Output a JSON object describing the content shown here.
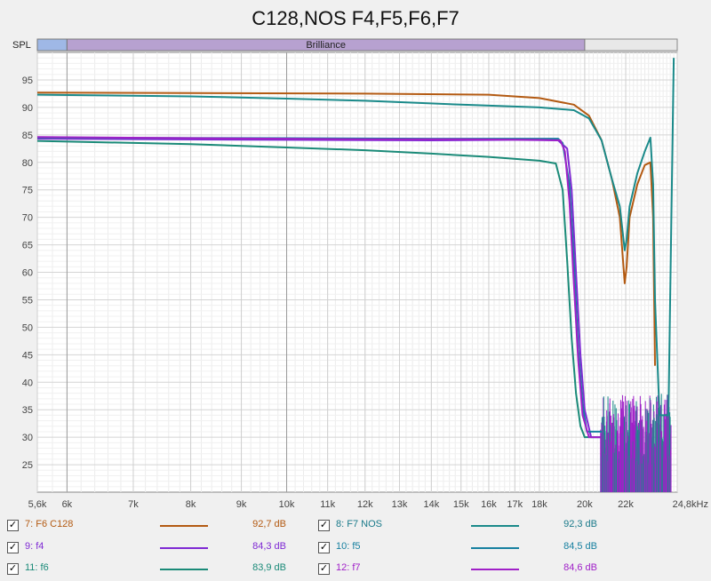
{
  "title": "C128,NOS F4,F5,F6,F7",
  "band": {
    "label": "SPL",
    "region": "Brilliance"
  },
  "chart_data": {
    "type": "line",
    "title": "C128,NOS F4,F5,F6,F7",
    "xscale": "log",
    "xlim": [
      5.6,
      24.8
    ],
    "ylim": [
      20,
      100
    ],
    "x_ticks": [
      {
        "v": 5.6,
        "label": "5,6k"
      },
      {
        "v": 6,
        "label": "6k"
      },
      {
        "v": 7,
        "label": "7k"
      },
      {
        "v": 8,
        "label": "8k"
      },
      {
        "v": 9,
        "label": "9k"
      },
      {
        "v": 10,
        "label": "10k"
      },
      {
        "v": 11,
        "label": "11k"
      },
      {
        "v": 12,
        "label": "12k"
      },
      {
        "v": 13,
        "label": "13k"
      },
      {
        "v": 14,
        "label": "14k"
      },
      {
        "v": 15,
        "label": "15k"
      },
      {
        "v": 16,
        "label": "16k"
      },
      {
        "v": 17,
        "label": "17k"
      },
      {
        "v": 18,
        "label": "18k"
      },
      {
        "v": 20,
        "label": "20k"
      },
      {
        "v": 22,
        "label": "22k"
      },
      {
        "v": 24.8,
        "label": "24,8kHz"
      }
    ],
    "y_ticks": [
      25,
      30,
      35,
      40,
      45,
      50,
      55,
      60,
      65,
      70,
      75,
      80,
      85,
      90,
      95
    ],
    "series": [
      {
        "name": "7: F6 C128",
        "color": "#b35a12",
        "x": [
          5.6,
          8,
          12,
          16,
          18,
          19.5,
          20.2,
          20.8,
          21.3,
          21.7,
          21.95,
          22.05,
          22.2,
          22.6,
          23.0,
          23.3,
          23.45,
          23.55
        ],
        "y": [
          92.7,
          92.6,
          92.5,
          92.3,
          91.7,
          90.5,
          88.5,
          84.0,
          77.0,
          70.0,
          58.0,
          61.0,
          70.0,
          76.0,
          79.5,
          80.0,
          70.0,
          43.0
        ]
      },
      {
        "name": "8: F7 NOS",
        "color": "#1a8a8a",
        "x": [
          5.6,
          8,
          10,
          12,
          15,
          18,
          19.5,
          20.2,
          20.8,
          21.3,
          21.7,
          21.95,
          22.05,
          22.2,
          22.6,
          23.0,
          23.3,
          23.45,
          23.55,
          23.8,
          24.3,
          24.6
        ],
        "y": [
          92.3,
          92.0,
          91.6,
          91.2,
          90.5,
          90.0,
          89.5,
          88.0,
          84.0,
          77.0,
          72.0,
          64.0,
          66.0,
          72.0,
          78.0,
          82.0,
          84.5,
          76.0,
          55.0,
          34.0,
          34.0,
          99.0
        ]
      },
      {
        "name": "9: f4",
        "color": "#7f2ad4",
        "x": [
          5.6,
          10,
          14,
          17,
          18.8,
          19.2,
          19.4,
          19.6,
          19.8,
          20.0,
          20.3,
          20.8
        ],
        "y": [
          84.3,
          84.1,
          84.0,
          84.1,
          84.0,
          82.5,
          75.0,
          60.0,
          45.0,
          35.0,
          30.0,
          30.0
        ]
      },
      {
        "name": "10: f5",
        "color": "#1780a0",
        "x": [
          5.6,
          10,
          14,
          17,
          18.8,
          19.0,
          19.3,
          19.5,
          19.7,
          19.9,
          20.1,
          20.8
        ],
        "y": [
          84.5,
          84.4,
          84.3,
          84.3,
          84.3,
          83.5,
          76.0,
          62.0,
          46.0,
          36.0,
          31.0,
          31.0
        ]
      },
      {
        "name": "11: f6",
        "color": "#1a8a78",
        "x": [
          5.6,
          8,
          10,
          12,
          14,
          16,
          18,
          18.7,
          19.0,
          19.2,
          19.4,
          19.6,
          19.8,
          20.0,
          20.8
        ],
        "y": [
          83.9,
          83.3,
          82.7,
          82.2,
          81.6,
          81.0,
          80.3,
          79.8,
          75.0,
          62.0,
          48.0,
          38.0,
          32.0,
          30.0,
          30.0
        ]
      },
      {
        "name": "12: f7",
        "color": "#a020c8",
        "x": [
          5.6,
          8,
          10,
          12,
          15,
          18,
          18.9,
          19.1,
          19.3,
          19.5,
          19.7,
          19.9,
          20.2,
          20.8
        ],
        "y": [
          84.6,
          84.4,
          84.3,
          84.2,
          84.2,
          84.1,
          84.0,
          82.0,
          73.0,
          58.0,
          44.0,
          34.0,
          30.0,
          30.0
        ]
      }
    ]
  },
  "legend": [
    {
      "label": "7: F6 C128",
      "value": "92,7 dB",
      "color": "#b35a12",
      "text_color": "#b35a12"
    },
    {
      "label": "8: F7 NOS",
      "value": "92,3 dB",
      "color": "#1a8a8a",
      "text_color": "#1a7a8a"
    },
    {
      "label": "9: f4",
      "value": "84,3 dB",
      "color": "#7f2ad4",
      "text_color": "#7f2ad4"
    },
    {
      "label": "10: f5",
      "value": "84,5 dB",
      "color": "#1780a0",
      "text_color": "#1780a0"
    },
    {
      "label": "11: f6",
      "value": "83,9 dB",
      "color": "#1a8a78",
      "text_color": "#1a8a78"
    },
    {
      "label": "12: f7",
      "value": "84,6 dB",
      "color": "#a020c8",
      "text_color": "#a020c8"
    }
  ]
}
